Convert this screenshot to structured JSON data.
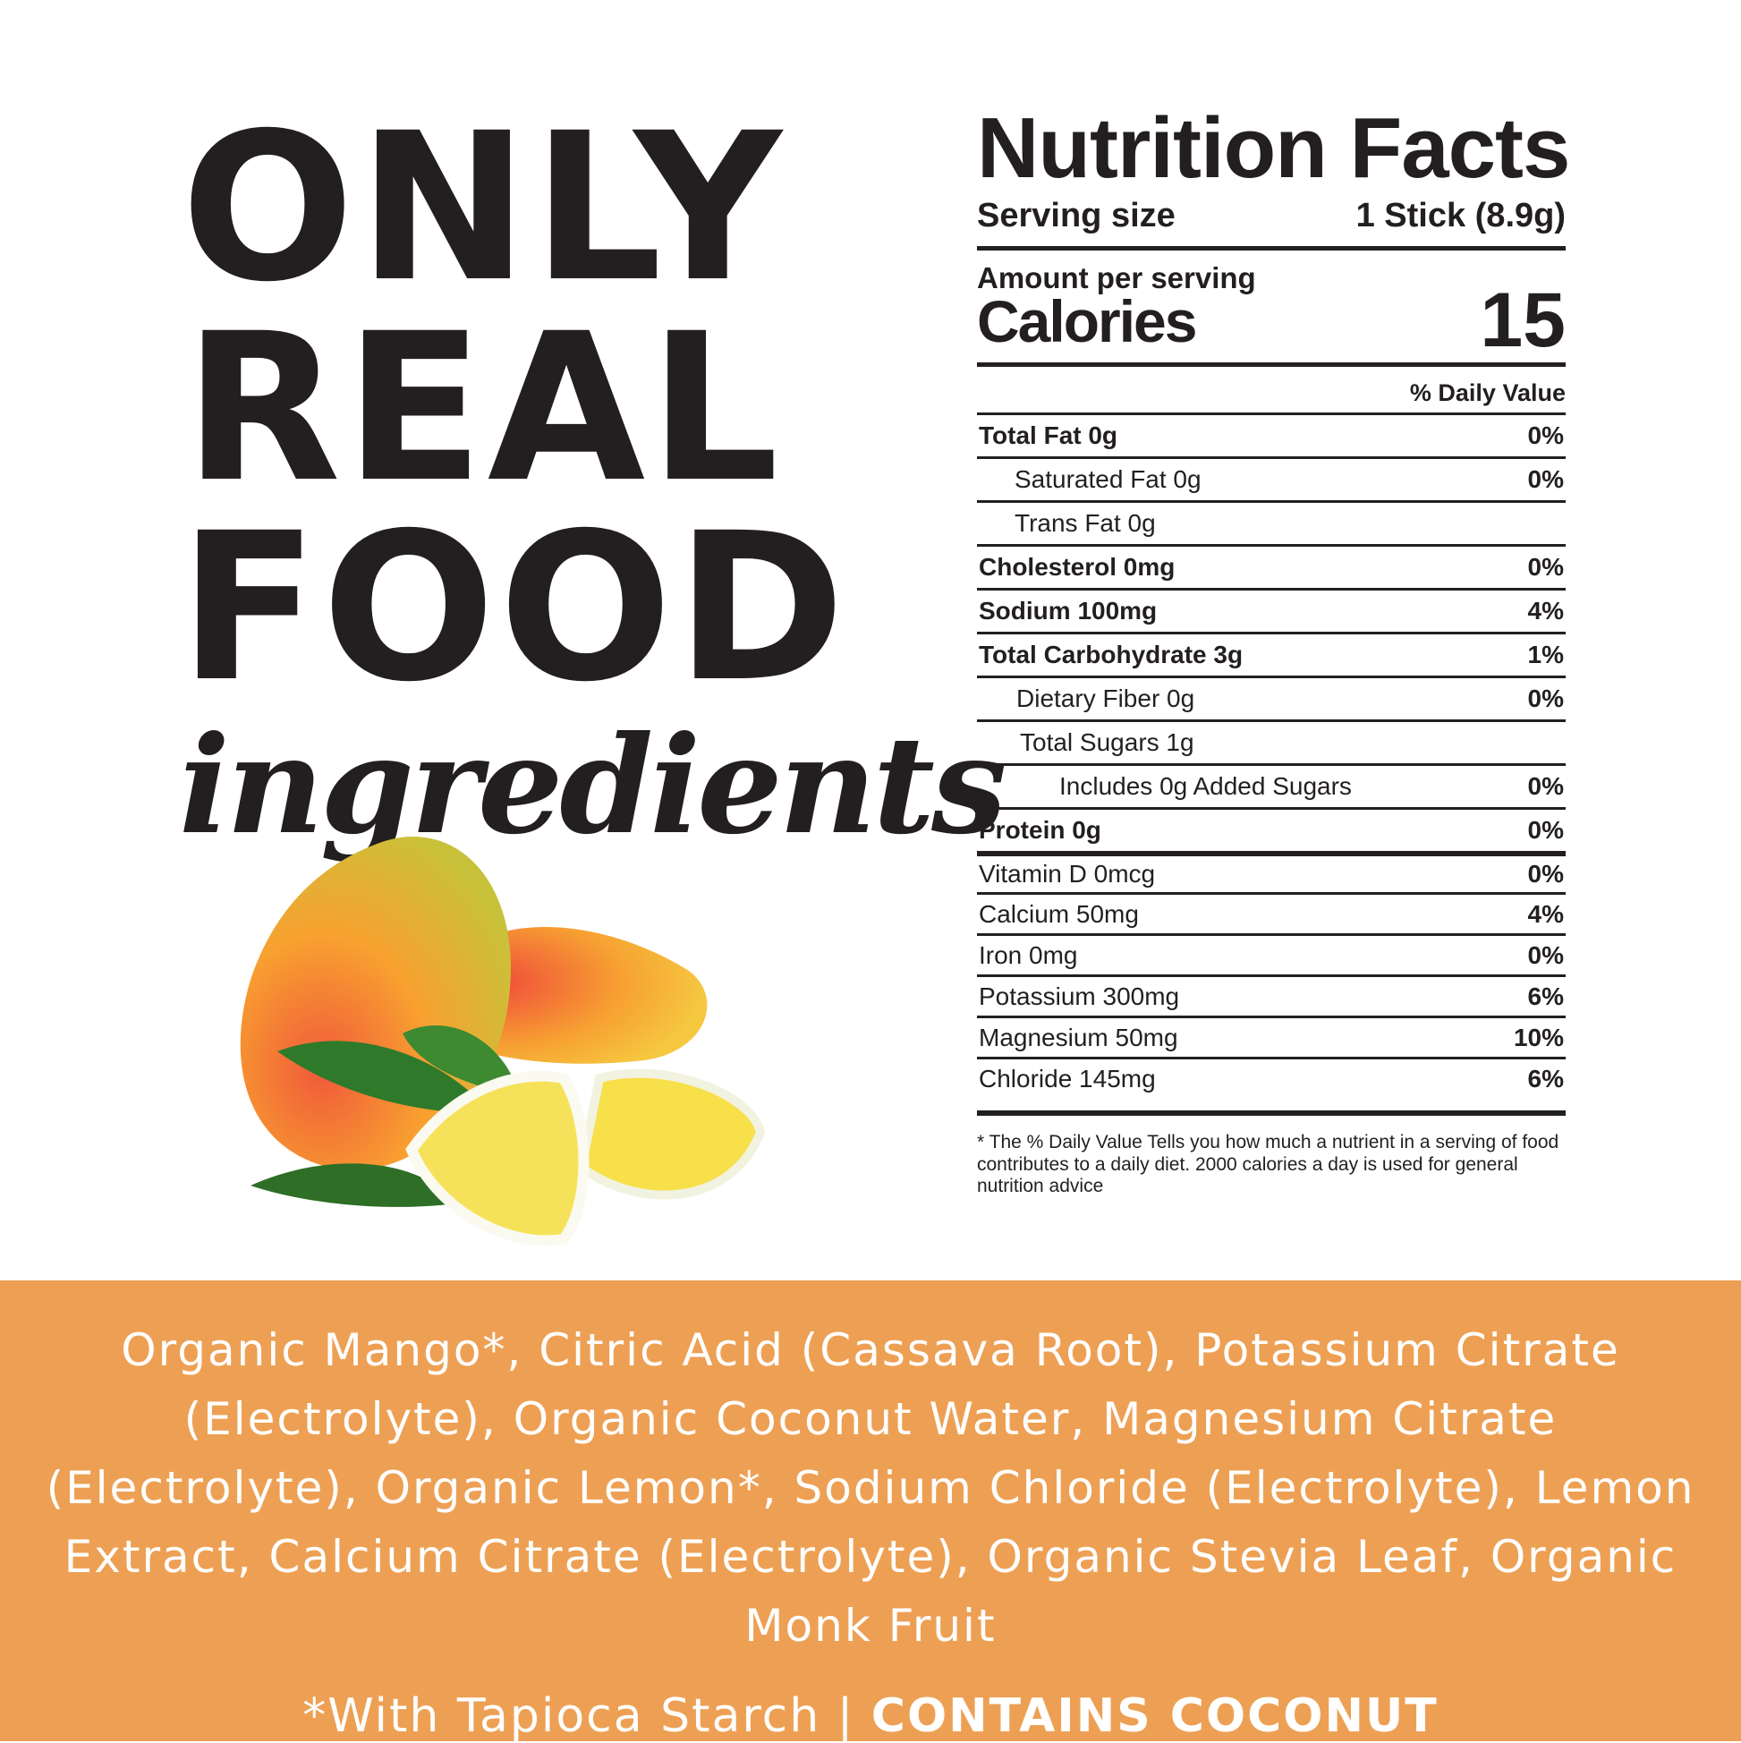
{
  "headline": {
    "line1": "ONLY",
    "line2": "REAL",
    "line3": "FOOD",
    "script": "ingredients"
  },
  "nutrition": {
    "title": "Nutrition Facts",
    "serving_label": "Serving size",
    "serving_value": "1 Stick (8.9g)",
    "amount_label": "Amount per serving",
    "calories_label": "Calories",
    "calories_value": "15",
    "dv_header": "% Daily Value",
    "rows": [
      {
        "name": "Total Fat 0g",
        "dv": "0%"
      },
      {
        "name": "Saturated Fat 0g",
        "dv": "0%"
      },
      {
        "name": "Trans Fat 0g",
        "dv": ""
      },
      {
        "name": "Cholesterol 0mg",
        "dv": "0%"
      },
      {
        "name": "Sodium 100mg",
        "dv": "4%"
      },
      {
        "name": "Total Carbohydrate 3g",
        "dv": "1%"
      },
      {
        "name": "Dietary Fiber 0g",
        "dv": "0%"
      },
      {
        "name": "Total Sugars  1g",
        "dv": ""
      },
      {
        "name": "Includes 0g Added Sugars",
        "dv": "0%"
      },
      {
        "name": "Protein 0g",
        "dv": "0%"
      },
      {
        "name": "Vitamin D 0mcg",
        "dv": "0%"
      },
      {
        "name": "Calcium 50mg",
        "dv": "4%"
      },
      {
        "name": "Iron 0mg",
        "dv": "0%"
      },
      {
        "name": "Potassium 300mg",
        "dv": "6%"
      },
      {
        "name": "Magnesium 50mg",
        "dv": "10%"
      },
      {
        "name": "Chloride 145mg",
        "dv": "6%"
      }
    ],
    "footnote": "* The % Daily Value Tells you how much a nutrient in a serving of food contributes to a daily diet. 2000 calories a day is used for general nutrition advice"
  },
  "ingredients": {
    "text": "Organic Mango*, Citric Acid (Cassava Root), Potassium Citrate (Electrolyte), Organic Coconut Water, Magnesium Citrate (Electrolyte), Organic Lemon*, Sodium Chloride (Electrolyte), Lemon Extract, Calcium Citrate (Electrolyte), Organic Stevia Leaf, Organic Monk Fruit",
    "note": "*With Tapioca Starch | ",
    "allergen": "CONTAINS COCONUT"
  },
  "colors": {
    "band": "#eda054",
    "text": "#231f20"
  }
}
